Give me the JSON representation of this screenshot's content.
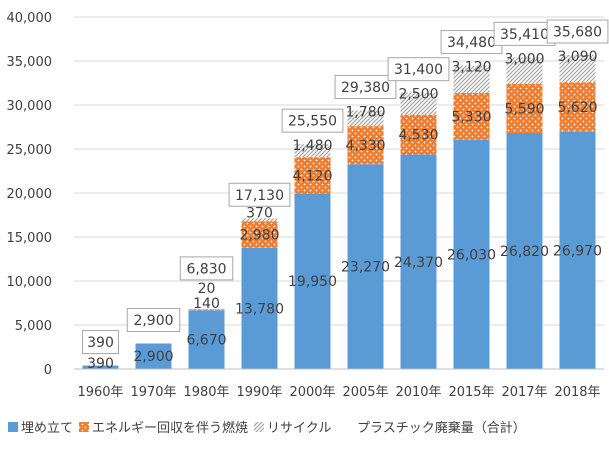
{
  "chart_data": {
    "type": "bar",
    "stacked": true,
    "categories": [
      "1960年",
      "1970年",
      "1980年",
      "1990年",
      "2000年",
      "2005年",
      "2010年",
      "2015年",
      "2017年",
      "2018年"
    ],
    "series": [
      {
        "name": "埋め立て",
        "color": "#5b9bd5",
        "pattern": "solid",
        "values": [
          390,
          2900,
          6670,
          13780,
          19950,
          23270,
          24370,
          26030,
          26820,
          26970
        ],
        "labels": [
          "390",
          "2,900",
          "6,670",
          "13,780",
          "19,950",
          "23,270",
          "24,370",
          "26,030",
          "26,820",
          "26,970"
        ]
      },
      {
        "name": "エネルギー回収を伴う燃焼",
        "color": "#ed7d31",
        "pattern": "dotted",
        "values": [
          0,
          0,
          140,
          2980,
          4120,
          4330,
          4530,
          5330,
          5590,
          5620
        ],
        "labels": [
          "",
          "",
          "140",
          "2,980",
          "4,120",
          "4,330",
          "4,530",
          "5,330",
          "5,590",
          "5,620"
        ]
      },
      {
        "name": "リサイクル",
        "color": "#a5a5a5",
        "pattern": "hatched",
        "values": [
          0,
          0,
          20,
          370,
          1480,
          1780,
          2500,
          3120,
          3000,
          3090
        ],
        "labels": [
          "",
          "",
          "20",
          "370",
          "1,480",
          "1,780",
          "2,500",
          "3,120",
          "3,000",
          "3,090"
        ]
      }
    ],
    "totals": {
      "name": "プラスチック廃棄量（合計）",
      "values": [
        390,
        2900,
        6830,
        17130,
        25550,
        29380,
        31400,
        34480,
        35410,
        35680
      ],
      "labels": [
        "390",
        "2,900",
        "6,830",
        "17,130",
        "25,550",
        "29,380",
        "31,400",
        "34,480",
        "35,410",
        "35,680"
      ]
    },
    "ylim": [
      0,
      40000
    ],
    "yticks": [
      0,
      5000,
      10000,
      15000,
      20000,
      25000,
      30000,
      35000,
      40000
    ],
    "ytick_labels": [
      "0",
      "5,000",
      "10,000",
      "15,000",
      "20,000",
      "25,000",
      "30,000",
      "35,000",
      "40,000"
    ],
    "grid": true,
    "legend_position": "bottom"
  }
}
